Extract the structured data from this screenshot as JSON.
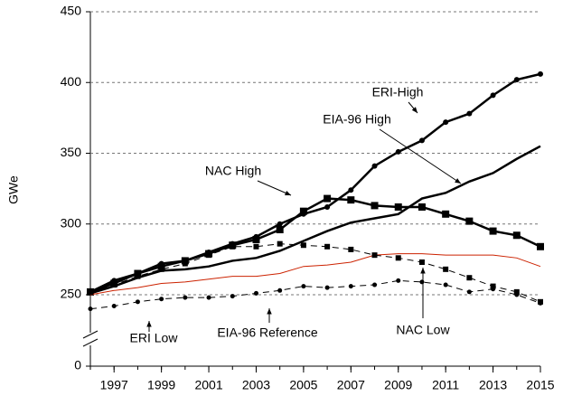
{
  "chart_data": {
    "type": "line",
    "y_label": "GWe",
    "x": [
      1996,
      1997,
      1998,
      1999,
      2000,
      2001,
      2002,
      2003,
      2004,
      2005,
      2006,
      2007,
      2008,
      2009,
      2010,
      2011,
      2012,
      2013,
      2014,
      2015
    ],
    "xlim": [
      1996,
      2015
    ],
    "xticks": [
      1997,
      1999,
      2001,
      2003,
      2005,
      2007,
      2009,
      2011,
      2013,
      2015
    ],
    "ylim": [
      0,
      450
    ],
    "yticks": [
      0,
      250,
      300,
      350,
      400,
      450
    ],
    "ybreak": [
      0,
      250
    ],
    "grid": true,
    "series": [
      {
        "name": "ERI-High",
        "color": "#000000",
        "marker": "circle",
        "dash": false,
        "width": 2.5,
        "values": [
          252,
          260,
          265,
          272,
          274,
          280,
          286,
          291,
          300,
          307,
          312,
          324,
          341,
          351,
          359,
          372,
          378,
          391,
          402,
          406
        ]
      },
      {
        "name": "EIA-96 High",
        "color": "#000000",
        "marker": null,
        "dash": false,
        "width": 2.5,
        "values": [
          251,
          256,
          262,
          267,
          268,
          270,
          274,
          276,
          281,
          288,
          295,
          301,
          304,
          307,
          318,
          322,
          330,
          336,
          346,
          355
        ]
      },
      {
        "name": "NAC High",
        "color": "#000000",
        "marker": "square",
        "dash": false,
        "width": 2.5,
        "values": [
          252,
          258,
          265,
          270,
          274,
          279,
          285,
          289,
          296,
          309,
          318,
          317,
          313,
          312,
          312,
          307,
          302,
          295,
          292,
          284
        ]
      },
      {
        "name": "ERI Low",
        "color": "#000000",
        "marker": "circle",
        "dash": true,
        "width": 1,
        "values": [
          240,
          242,
          245,
          247,
          248,
          248,
          249,
          251,
          253,
          256,
          255,
          256,
          257,
          260,
          259,
          257,
          252,
          254,
          250,
          244
        ]
      },
      {
        "name": "EIA-96 Reference",
        "color": "#cc2200",
        "marker": null,
        "dash": false,
        "width": 1,
        "values": [
          250,
          253,
          255,
          258,
          259,
          261,
          263,
          263,
          265,
          270,
          271,
          273,
          278,
          279,
          279,
          278,
          278,
          278,
          276,
          270
        ]
      },
      {
        "name": "NAC Low",
        "color": "#000000",
        "marker": "square",
        "dash": true,
        "width": 1,
        "values": [
          252,
          257,
          263,
          268,
          272,
          278,
          284,
          284,
          286,
          285,
          284,
          282,
          278,
          276,
          273,
          268,
          262,
          256,
          252,
          245
        ]
      }
    ]
  }
}
